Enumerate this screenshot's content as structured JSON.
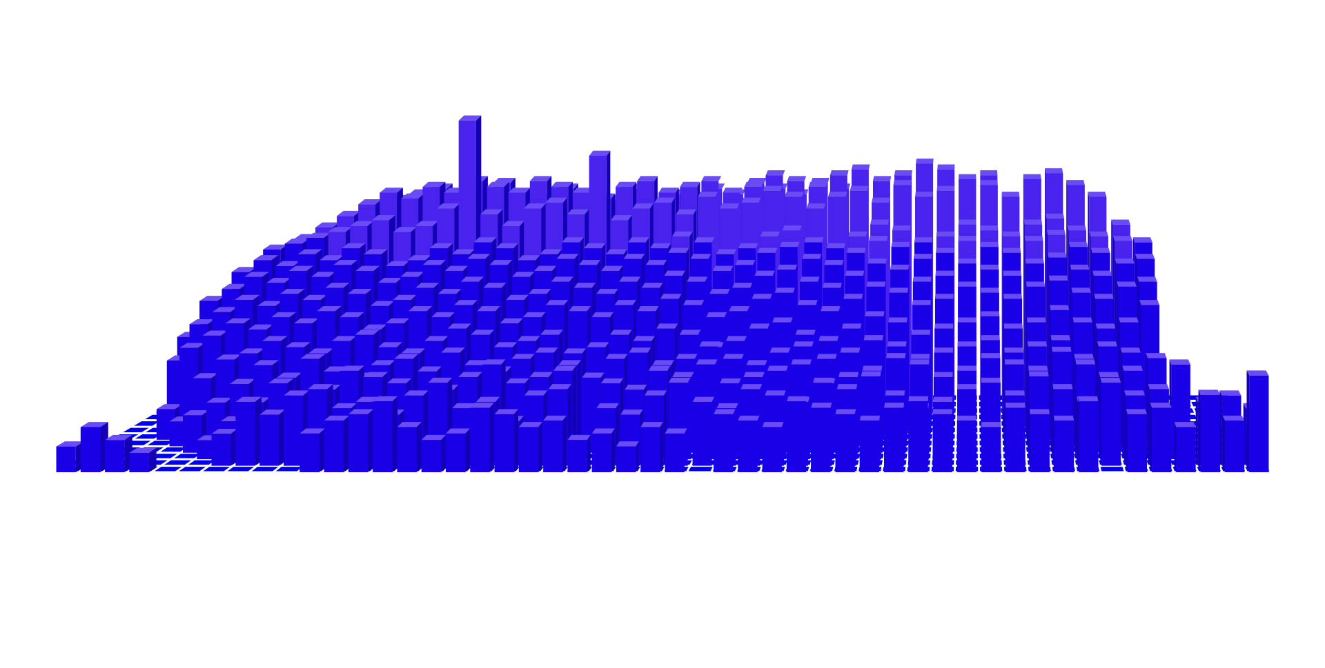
{
  "chart_data": {
    "type": "bar3d",
    "title": "",
    "xlabel": "",
    "ylabel": "",
    "zlabel": "",
    "grid": true,
    "legend": "none",
    "colors": {
      "background": "#ffffff",
      "floor": "#0000ee",
      "floor_grid": "#ffffff",
      "bar_front": "#1a00e6",
      "bar_front_high": "#4a22ee",
      "bar_side": "#1400b4",
      "bar_top": "#6a4cf5"
    },
    "rows": 12,
    "cols": 50,
    "zlim": [
      0,
      100
    ],
    "values": [
      [
        8,
        14,
        10,
        6,
        0,
        0,
        0,
        0,
        0,
        0,
        12,
        16,
        18,
        22,
        14,
        10,
        12,
        20,
        18,
        14,
        16,
        10,
        12,
        8,
        14,
        12,
        0,
        18,
        16,
        14,
        22,
        20,
        18,
        16,
        20,
        22,
        18,
        16,
        14,
        20,
        18,
        16,
        22,
        0,
        18,
        20,
        14,
        24,
        16,
        30
      ],
      [
        0,
        0,
        0,
        0,
        0,
        0,
        10,
        20,
        16,
        22,
        24,
        18,
        20,
        16,
        22,
        26,
        18,
        20,
        14,
        22,
        24,
        0,
        18,
        16,
        22,
        26,
        20,
        18,
        24,
        22,
        20,
        26,
        24,
        28,
        22,
        18,
        20,
        24,
        26,
        22,
        28,
        24,
        20,
        26,
        22,
        24,
        0,
        20,
        22,
        18
      ],
      [
        0,
        0,
        0,
        0,
        0,
        6,
        12,
        18,
        24,
        20,
        22,
        28,
        26,
        24,
        20,
        22,
        26,
        30,
        24,
        26,
        28,
        0,
        24,
        22,
        28,
        26,
        30,
        24,
        26,
        28,
        30,
        24,
        26,
        28,
        32,
        30,
        26,
        28,
        32,
        30,
        28,
        34,
        30,
        26,
        28,
        32,
        30,
        0,
        0,
        0
      ],
      [
        0,
        0,
        0,
        0,
        12,
        16,
        22,
        28,
        24,
        30,
        26,
        24,
        28,
        30,
        26,
        32,
        28,
        26,
        30,
        32,
        28,
        24,
        30,
        32,
        28,
        30,
        34,
        30,
        28,
        32,
        34,
        30,
        32,
        36,
        34,
        30,
        32,
        34,
        36,
        32,
        34,
        36,
        30,
        34,
        32,
        0,
        0,
        0,
        0,
        0
      ],
      [
        0,
        0,
        0,
        8,
        22,
        28,
        30,
        34,
        32,
        30,
        34,
        36,
        32,
        30,
        34,
        38,
        36,
        32,
        34,
        36,
        30,
        32,
        36,
        34,
        38,
        36,
        32,
        34,
        38,
        40,
        36,
        34,
        38,
        42,
        40,
        36,
        38,
        40,
        42,
        38,
        40,
        44,
        40,
        38,
        40,
        0,
        0,
        0,
        0,
        0
      ],
      [
        0,
        0,
        10,
        30,
        34,
        38,
        36,
        40,
        38,
        42,
        40,
        36,
        38,
        42,
        40,
        44,
        42,
        38,
        40,
        44,
        42,
        40,
        44,
        42,
        46,
        44,
        40,
        42,
        46,
        48,
        44,
        42,
        46,
        50,
        48,
        44,
        46,
        50,
        48,
        46,
        50,
        52,
        48,
        46,
        50,
        44,
        0,
        0,
        0,
        0
      ],
      [
        0,
        0,
        24,
        36,
        40,
        44,
        42,
        46,
        44,
        48,
        46,
        42,
        44,
        48,
        46,
        50,
        48,
        44,
        46,
        50,
        48,
        46,
        50,
        48,
        52,
        50,
        46,
        48,
        52,
        54,
        50,
        48,
        52,
        56,
        54,
        50,
        52,
        56,
        54,
        52,
        56,
        58,
        54,
        52,
        56,
        50,
        0,
        0,
        0,
        0
      ],
      [
        0,
        0,
        30,
        42,
        46,
        50,
        48,
        52,
        50,
        54,
        52,
        48,
        50,
        54,
        52,
        56,
        54,
        50,
        52,
        56,
        54,
        52,
        56,
        54,
        58,
        56,
        52,
        54,
        58,
        60,
        56,
        54,
        58,
        62,
        60,
        56,
        58,
        62,
        60,
        58,
        62,
        64,
        60,
        58,
        62,
        56,
        0,
        0,
        0,
        0
      ],
      [
        0,
        0,
        0,
        40,
        50,
        54,
        52,
        56,
        54,
        58,
        56,
        52,
        54,
        58,
        56,
        60,
        58,
        54,
        56,
        60,
        58,
        56,
        60,
        58,
        62,
        60,
        56,
        58,
        62,
        64,
        60,
        58,
        62,
        66,
        64,
        60,
        62,
        66,
        64,
        62,
        66,
        68,
        64,
        62,
        66,
        60,
        0,
        0,
        0,
        0
      ],
      [
        0,
        0,
        0,
        0,
        46,
        56,
        58,
        60,
        62,
        64,
        66,
        62,
        64,
        70,
        100,
        68,
        64,
        70,
        72,
        68,
        88,
        66,
        70,
        72,
        68,
        74,
        70,
        72,
        76,
        74,
        70,
        74,
        76,
        72,
        78,
        74,
        76,
        80,
        78,
        74,
        80,
        82,
        78,
        74,
        0,
        0,
        0,
        0,
        0,
        0
      ],
      [
        0,
        0,
        0,
        0,
        0,
        0,
        58,
        62,
        66,
        70,
        74,
        72,
        76,
        74,
        78,
        76,
        74,
        78,
        76,
        74,
        72,
        76,
        78,
        74,
        76,
        78,
        74,
        76,
        80,
        78,
        76,
        80,
        82,
        78,
        80,
        84,
        82,
        78,
        80,
        0,
        0,
        0,
        0,
        0,
        0,
        0,
        0,
        0,
        0,
        0
      ],
      [
        0,
        0,
        0,
        0,
        0,
        0,
        0,
        0,
        0,
        64,
        70,
        72,
        74,
        70,
        72,
        76,
        72,
        70,
        74,
        72,
        70,
        74,
        0,
        72,
        70,
        74,
        72,
        76,
        74,
        72,
        76,
        74,
        0,
        0,
        0,
        0,
        0,
        0,
        0,
        0,
        0,
        0,
        0,
        0,
        0,
        0,
        0,
        0,
        0,
        0
      ]
    ]
  }
}
